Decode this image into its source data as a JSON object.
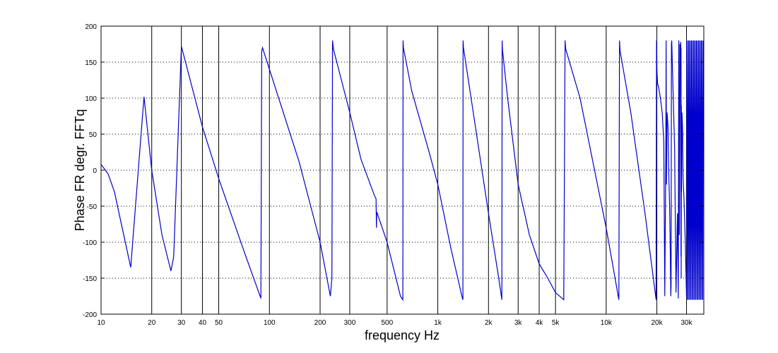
{
  "chart_data": {
    "type": "line",
    "xlabel": "frequency   Hz",
    "ylabel": "Phase FR degr.   FFTq",
    "x_scale": "log",
    "xlim": [
      10,
      38000
    ],
    "ylim": [
      -200,
      200
    ],
    "y_ticks": [
      -200,
      -150,
      -100,
      -50,
      0,
      50,
      100,
      150,
      200
    ],
    "x_ticks": [
      {
        "value": 10,
        "label": "10"
      },
      {
        "value": 20,
        "label": "20"
      },
      {
        "value": 30,
        "label": "30"
      },
      {
        "value": 40,
        "label": "40"
      },
      {
        "value": 50,
        "label": "50"
      },
      {
        "value": 100,
        "label": "100"
      },
      {
        "value": 200,
        "label": "200"
      },
      {
        "value": 300,
        "label": "300"
      },
      {
        "value": 500,
        "label": "500"
      },
      {
        "value": 1000,
        "label": "1k"
      },
      {
        "value": 2000,
        "label": "2k"
      },
      {
        "value": 3000,
        "label": "3k"
      },
      {
        "value": 4000,
        "label": "4k"
      },
      {
        "value": 5000,
        "label": "5k"
      },
      {
        "value": 10000,
        "label": "10k"
      },
      {
        "value": 20000,
        "label": "20k"
      },
      {
        "value": 30000,
        "label": "30k"
      }
    ],
    "grid": {
      "y": "dotted",
      "x": "solid"
    },
    "line_color": "#0000cc",
    "series": [
      {
        "x": [
          10,
          11,
          12,
          15,
          18,
          20,
          23,
          26,
          27,
          30,
          40,
          50,
          70,
          89,
          90,
          91,
          100,
          150,
          200,
          230,
          235,
          237,
          240,
          300,
          350,
          420,
          430,
          432,
          434,
          440,
          500,
          600,
          620,
          622,
          625,
          700,
          900,
          1000,
          1200,
          1400,
          1410,
          1412,
          1420,
          1600,
          2000,
          2300,
          2400,
          2410,
          2420,
          2600,
          3000,
          3500,
          4000,
          4500,
          5000,
          5600,
          5700,
          5720,
          5750,
          7000,
          10000,
          11900,
          12000,
          12050,
          12100,
          14000,
          17000,
          19800,
          19900,
          19950,
          20000,
          20200,
          20500,
          21000,
          21500,
          22000,
          22300,
          22600,
          22700,
          22800,
          23000,
          23300,
          23500,
          23800,
          24000,
          24200,
          24300,
          24400,
          24500,
          25500,
          26000,
          26500,
          26800,
          27000,
          27200,
          27400,
          27600,
          27700,
          27800,
          27850,
          27900,
          27950,
          28000,
          28200,
          28400,
          28600,
          29000,
          29500,
          30000
        ],
        "y": [
          8,
          -5,
          -30,
          -135,
          102,
          0,
          -90,
          -140,
          -120,
          172,
          60,
          -12,
          -110,
          -178,
          165,
          170,
          140,
          12,
          -100,
          -175,
          -150,
          180,
          168,
          80,
          15,
          -35,
          -40,
          -80,
          -58,
          -62,
          -100,
          -175,
          -180,
          180,
          170,
          110,
          20,
          -20,
          -110,
          -178,
          -180,
          180,
          170,
          90,
          -60,
          -150,
          -180,
          180,
          168,
          100,
          -20,
          -90,
          -130,
          -150,
          -170,
          -180,
          180,
          175,
          168,
          100,
          -80,
          -180,
          180,
          172,
          165,
          80,
          -60,
          -180,
          180,
          168,
          140,
          120,
          115,
          100,
          80,
          40,
          -175,
          15,
          180,
          -20,
          80,
          60,
          0,
          -50,
          -100,
          -175,
          -160,
          175,
          180,
          30,
          -170,
          -60,
          -178,
          180,
          -90,
          175,
          160,
          178,
          -120,
          170,
          -150,
          90,
          -30,
          80,
          60,
          -10,
          -40,
          -100,
          -176
        ]
      }
    ],
    "dense_band": {
      "x_start": 30000,
      "x_end": 38000,
      "y_min": -180,
      "y_max": 180
    }
  }
}
